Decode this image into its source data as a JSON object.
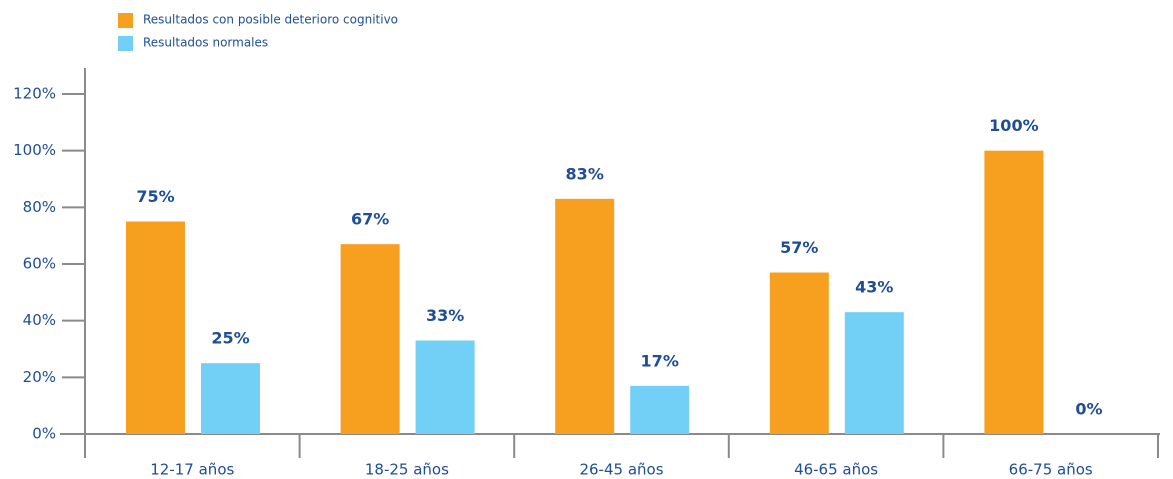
{
  "chart_data": {
    "type": "bar",
    "categories": [
      "12-17 años",
      "18-25 años",
      "26-45 años",
      "46-65 años",
      "66-75 años"
    ],
    "series": [
      {
        "name": "Resultados con posible deterioro cognitivo",
        "color": "#f79f1f",
        "values": [
          75,
          67,
          83,
          57,
          100
        ],
        "value_labels": [
          "75%",
          "67%",
          "83%",
          "57%",
          "100%"
        ]
      },
      {
        "name": "Resultados normales",
        "color": "#72d0f6",
        "values": [
          25,
          33,
          17,
          43,
          0
        ],
        "value_labels": [
          "25%",
          "33%",
          "17%",
          "43%",
          "0%"
        ]
      }
    ],
    "ylim": [
      0,
      120
    ],
    "yticks": [
      {
        "value": 0,
        "label": "0%"
      },
      {
        "value": 20,
        "label": "20%"
      },
      {
        "value": 40,
        "label": "40%"
      },
      {
        "value": 60,
        "label": "60%"
      },
      {
        "value": 80,
        "label": "80%"
      },
      {
        "value": 100,
        "label": "100%"
      },
      {
        "value": 120,
        "label": "120%"
      }
    ],
    "legend": "top-left"
  }
}
